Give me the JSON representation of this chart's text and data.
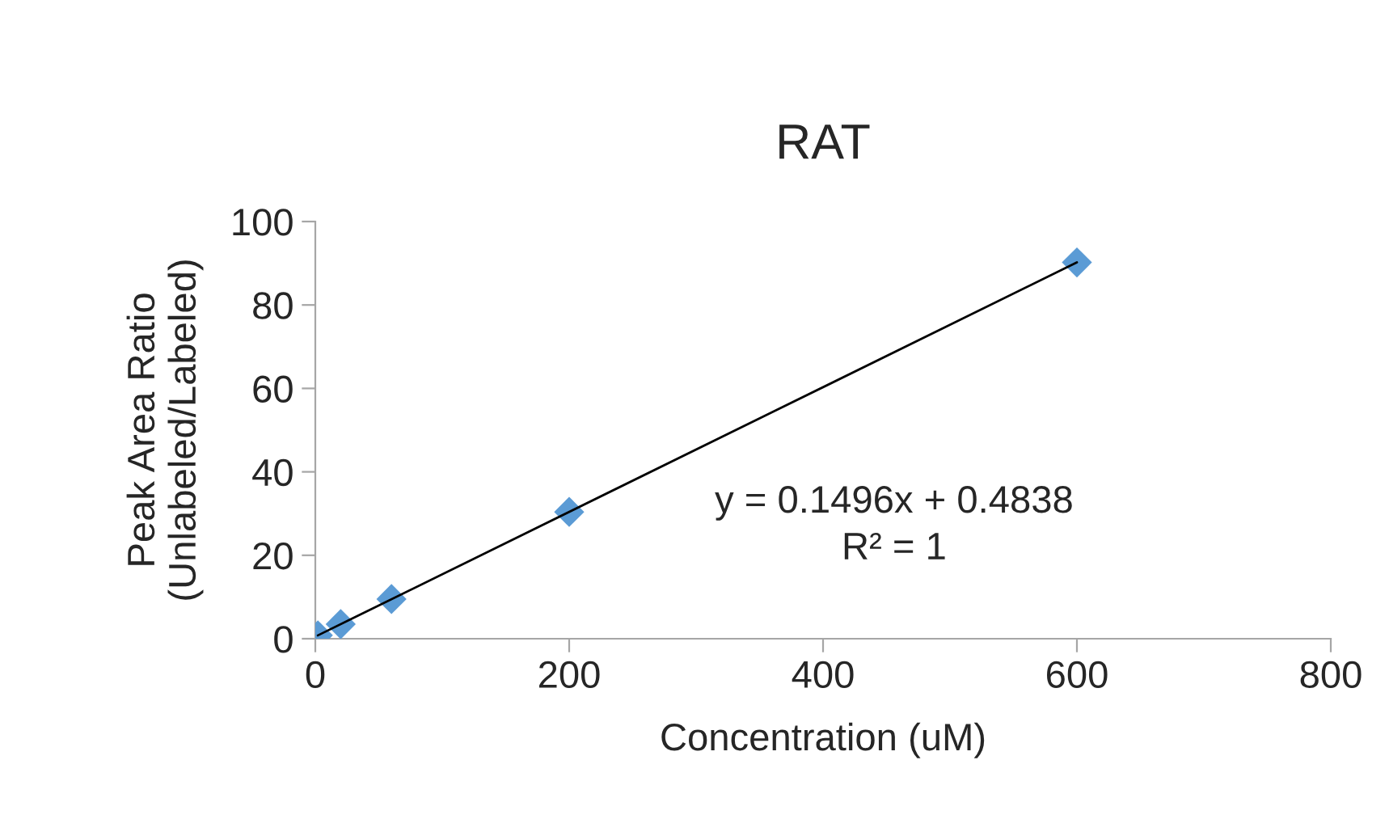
{
  "chart_data": {
    "type": "scatter",
    "title": "RAT",
    "xlabel": "Concentration (uM)",
    "ylabel": "Peak Area Ratio\n(Unlabeled/Labeled)",
    "series": [
      {
        "color": "#5b9bd5",
        "marker": "diamond",
        "x": [
          2,
          20,
          60,
          200,
          600
        ],
        "values": [
          0.8,
          3.5,
          9.5,
          30.4,
          90.2
        ]
      },
      {
        "type": "line",
        "color": "#000000",
        "marker": "none",
        "x": [
          2,
          600
        ],
        "values": [
          0.8,
          90.2
        ]
      }
    ],
    "annotations": [
      "y = 0.1496x + 0.4838\nR² = 1"
    ],
    "xlim": [
      0,
      800
    ],
    "xticks": [
      0,
      200,
      400,
      600,
      800
    ],
    "ylim": [
      0,
      100
    ],
    "yticks": [
      0,
      20,
      40,
      60,
      80,
      100
    ],
    "grid": false,
    "legend": false
  }
}
